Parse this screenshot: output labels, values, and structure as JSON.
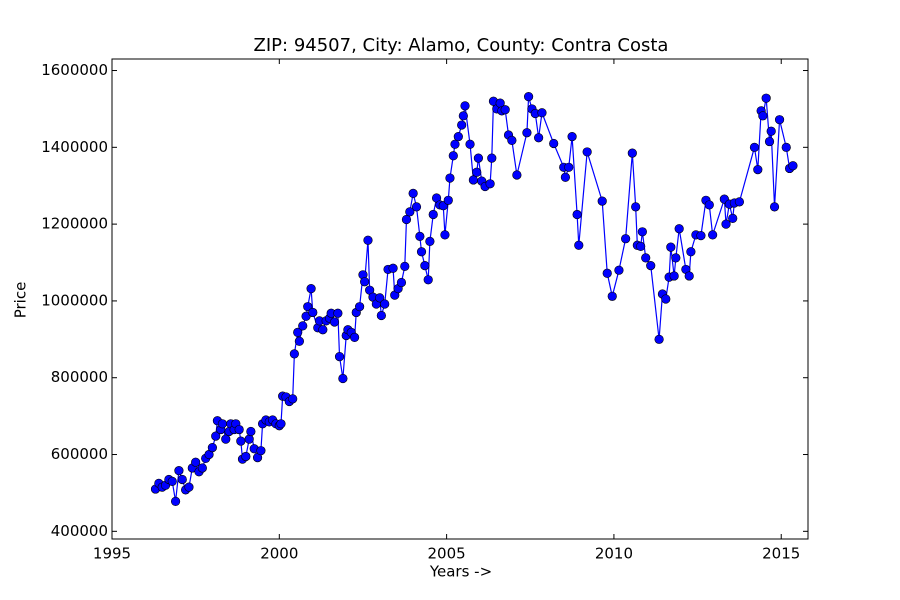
{
  "chart_data": {
    "type": "line",
    "title": "ZIP: 94507, City: Alamo, County: Contra Costa",
    "x_label": "Years ->",
    "y_label": "Price",
    "xlim": [
      1995,
      2015.8
    ],
    "ylim": [
      380000,
      1630000
    ],
    "xticks": [
      1995,
      2000,
      2005,
      2010,
      2015
    ],
    "yticks": [
      400000,
      600000,
      800000,
      1000000,
      1200000,
      1400000,
      1600000
    ],
    "color": "#0000ff",
    "markers": true,
    "grid": false,
    "x": [
      1996.3,
      1996.4,
      1996.5,
      1996.6,
      1996.7,
      1996.8,
      1996.9,
      1997.0,
      1997.1,
      1997.2,
      1997.3,
      1997.4,
      1997.5,
      1997.6,
      1997.7,
      1997.8,
      1997.9,
      1998.0,
      1998.1,
      1998.15,
      1998.25,
      1998.3,
      1998.4,
      1998.5,
      1998.55,
      1998.65,
      1998.7,
      1998.8,
      1998.85,
      1998.9,
      1999.0,
      1999.1,
      1999.15,
      1999.25,
      1999.35,
      1999.45,
      1999.5,
      1999.6,
      1999.7,
      1999.8,
      1999.9,
      2000.0,
      2000.05,
      2000.1,
      2000.2,
      2000.3,
      2000.4,
      2000.45,
      2000.55,
      2000.6,
      2000.7,
      2000.8,
      2000.85,
      2000.95,
      2001.0,
      2001.15,
      2001.2,
      2001.3,
      2001.4,
      2001.5,
      2001.55,
      2001.65,
      2001.75,
      2001.8,
      2001.9,
      2002.0,
      2002.05,
      2002.15,
      2002.25,
      2002.3,
      2002.4,
      2002.5,
      2002.55,
      2002.65,
      2002.7,
      2002.8,
      2002.9,
      2003.0,
      2003.05,
      2003.15,
      2003.25,
      2003.4,
      2003.45,
      2003.55,
      2003.65,
      2003.75,
      2003.8,
      2003.9,
      2004.0,
      2004.1,
      2004.2,
      2004.25,
      2004.35,
      2004.45,
      2004.5,
      2004.6,
      2004.7,
      2004.8,
      2004.9,
      2004.95,
      2005.05,
      2005.1,
      2005.2,
      2005.25,
      2005.35,
      2005.45,
      2005.5,
      2005.55,
      2005.7,
      2005.8,
      2005.9,
      2005.95,
      2006.05,
      2006.15,
      2006.3,
      2006.35,
      2006.4,
      2006.5,
      2006.6,
      2006.65,
      2006.75,
      2006.85,
      2006.95,
      2007.1,
      2007.4,
      2007.45,
      2007.55,
      2007.65,
      2007.75,
      2007.85,
      2008.2,
      2008.5,
      2008.55,
      2008.65,
      2008.75,
      2008.9,
      2008.95,
      2009.2,
      2009.65,
      2009.8,
      2009.95,
      2010.15,
      2010.35,
      2010.55,
      2010.65,
      2010.7,
      2010.8,
      2010.85,
      2010.95,
      2011.1,
      2011.35,
      2011.45,
      2011.55,
      2011.65,
      2011.7,
      2011.8,
      2011.85,
      2011.95,
      2012.15,
      2012.25,
      2012.3,
      2012.45,
      2012.6,
      2012.75,
      2012.85,
      2012.95,
      2013.3,
      2013.35,
      2013.45,
      2013.55,
      2013.6,
      2013.75,
      2014.2,
      2014.3,
      2014.4,
      2014.45,
      2014.55,
      2014.65,
      2014.7,
      2014.8,
      2014.95,
      2015.15,
      2015.25,
      2015.35
    ],
    "values": [
      510000,
      525000,
      515000,
      520000,
      535000,
      530000,
      478000,
      558000,
      535000,
      508000,
      515000,
      565000,
      580000,
      555000,
      565000,
      590000,
      600000,
      618000,
      648000,
      688000,
      665000,
      680000,
      640000,
      660000,
      680000,
      665000,
      680000,
      665000,
      635000,
      588000,
      595000,
      640000,
      660000,
      615000,
      592000,
      610000,
      680000,
      690000,
      685000,
      690000,
      680000,
      675000,
      680000,
      752000,
      750000,
      738000,
      745000,
      862000,
      918000,
      895000,
      935000,
      960000,
      985000,
      1032000,
      970000,
      930000,
      948000,
      925000,
      948000,
      955000,
      968000,
      945000,
      968000,
      855000,
      798000,
      910000,
      925000,
      918000,
      905000,
      970000,
      985000,
      1068000,
      1050000,
      1158000,
      1028000,
      1010000,
      992000,
      1008000,
      962000,
      992000,
      1082000,
      1085000,
      1015000,
      1032000,
      1048000,
      1090000,
      1212000,
      1232000,
      1280000,
      1245000,
      1168000,
      1128000,
      1092000,
      1055000,
      1155000,
      1225000,
      1268000,
      1250000,
      1248000,
      1172000,
      1262000,
      1320000,
      1378000,
      1408000,
      1428000,
      1458000,
      1482000,
      1508000,
      1408000,
      1315000,
      1335000,
      1372000,
      1312000,
      1298000,
      1305000,
      1372000,
      1520000,
      1500000,
      1515000,
      1495000,
      1498000,
      1432000,
      1418000,
      1328000,
      1438000,
      1532000,
      1500000,
      1488000,
      1425000,
      1490000,
      1410000,
      1348000,
      1322000,
      1348000,
      1428000,
      1225000,
      1145000,
      1388000,
      1260000,
      1072000,
      1012000,
      1080000,
      1162000,
      1385000,
      1245000,
      1145000,
      1142000,
      1180000,
      1112000,
      1092000,
      900000,
      1018000,
      1005000,
      1062000,
      1140000,
      1065000,
      1112000,
      1188000,
      1082000,
      1065000,
      1128000,
      1172000,
      1170000,
      1262000,
      1250000,
      1172000,
      1265000,
      1200000,
      1252000,
      1215000,
      1255000,
      1258000,
      1400000,
      1342000,
      1495000,
      1482000,
      1528000,
      1415000,
      1442000,
      1245000,
      1472000,
      1400000,
      1345000,
      1352000
    ]
  }
}
